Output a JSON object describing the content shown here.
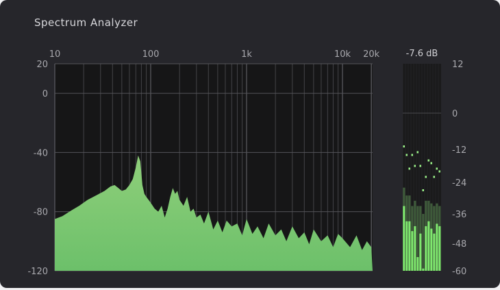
{
  "title": "Spectrum Analyzer",
  "chart_data": [
    {
      "type": "area",
      "xscale": "log",
      "xlim": [
        10,
        20000
      ],
      "ylim": [
        -120,
        20
      ],
      "grid": true,
      "x_ticks": [
        "10",
        "100",
        "1k",
        "10k",
        "20k"
      ],
      "x_tick_values": [
        10,
        100,
        1000,
        10000,
        20000
      ],
      "y_ticks": [
        "20",
        "0",
        "-40",
        "-80",
        "-120"
      ],
      "y_tick_values": [
        20,
        0,
        -40,
        -80,
        -120
      ],
      "color": "#6cc06a",
      "x": [
        10,
        12,
        15,
        18,
        22,
        27,
        33,
        38,
        42,
        46,
        50,
        55,
        60,
        65,
        70,
        74,
        78,
        82,
        86,
        90,
        95,
        100,
        110,
        120,
        130,
        140,
        150,
        160,
        170,
        180,
        190,
        200,
        220,
        240,
        260,
        280,
        300,
        330,
        360,
        400,
        450,
        500,
        560,
        620,
        700,
        800,
        900,
        1000,
        1150,
        1300,
        1500,
        1700,
        2000,
        2300,
        2600,
        3000,
        3500,
        4000,
        4500,
        5000,
        6000,
        7000,
        8000,
        9000,
        10000,
        12000,
        14000,
        16000,
        18000,
        20000
      ],
      "y": [
        -85,
        -83,
        -79,
        -76,
        -72,
        -69,
        -66,
        -63,
        -62,
        -64,
        -66,
        -65,
        -62,
        -58,
        -50,
        -42,
        -46,
        -62,
        -68,
        -70,
        -72,
        -74,
        -78,
        -80,
        -76,
        -84,
        -78,
        -70,
        -64,
        -68,
        -66,
        -72,
        -76,
        -70,
        -80,
        -78,
        -84,
        -82,
        -88,
        -80,
        -92,
        -86,
        -94,
        -86,
        -90,
        -88,
        -96,
        -85,
        -95,
        -90,
        -98,
        -88,
        -96,
        -92,
        -100,
        -90,
        -98,
        -94,
        -102,
        -92,
        -100,
        -96,
        -104,
        -95,
        -98,
        -104,
        -96,
        -106,
        -100,
        -104
      ]
    },
    {
      "type": "bar",
      "title": "-7.6 dB",
      "y_ticks": [
        "12",
        "0",
        "-12",
        "-24",
        "-36",
        "-48",
        "-60"
      ],
      "y_tick_values": [
        12,
        0,
        -12,
        -24,
        -36,
        -48,
        -60
      ],
      "ylim": [
        -60,
        12
      ],
      "level_color": "#7fe86e",
      "hold_color": "#3e5a3a",
      "peak_color": "#9cf58a",
      "levels": [
        -33,
        -39,
        -39,
        -43,
        -41,
        -54,
        -44,
        -59,
        -41,
        -39,
        -42,
        -44,
        -40,
        -41
      ],
      "holds": [
        -26,
        -29,
        -29,
        -33,
        -31,
        -33,
        -33,
        -36,
        -31,
        -31,
        -32,
        -33,
        -32,
        -33
      ],
      "peaks": [
        -11,
        -14,
        -19,
        -14,
        -18,
        -13,
        -18,
        -27,
        -22,
        -16,
        -17,
        -22,
        -19,
        -20
      ]
    }
  ]
}
